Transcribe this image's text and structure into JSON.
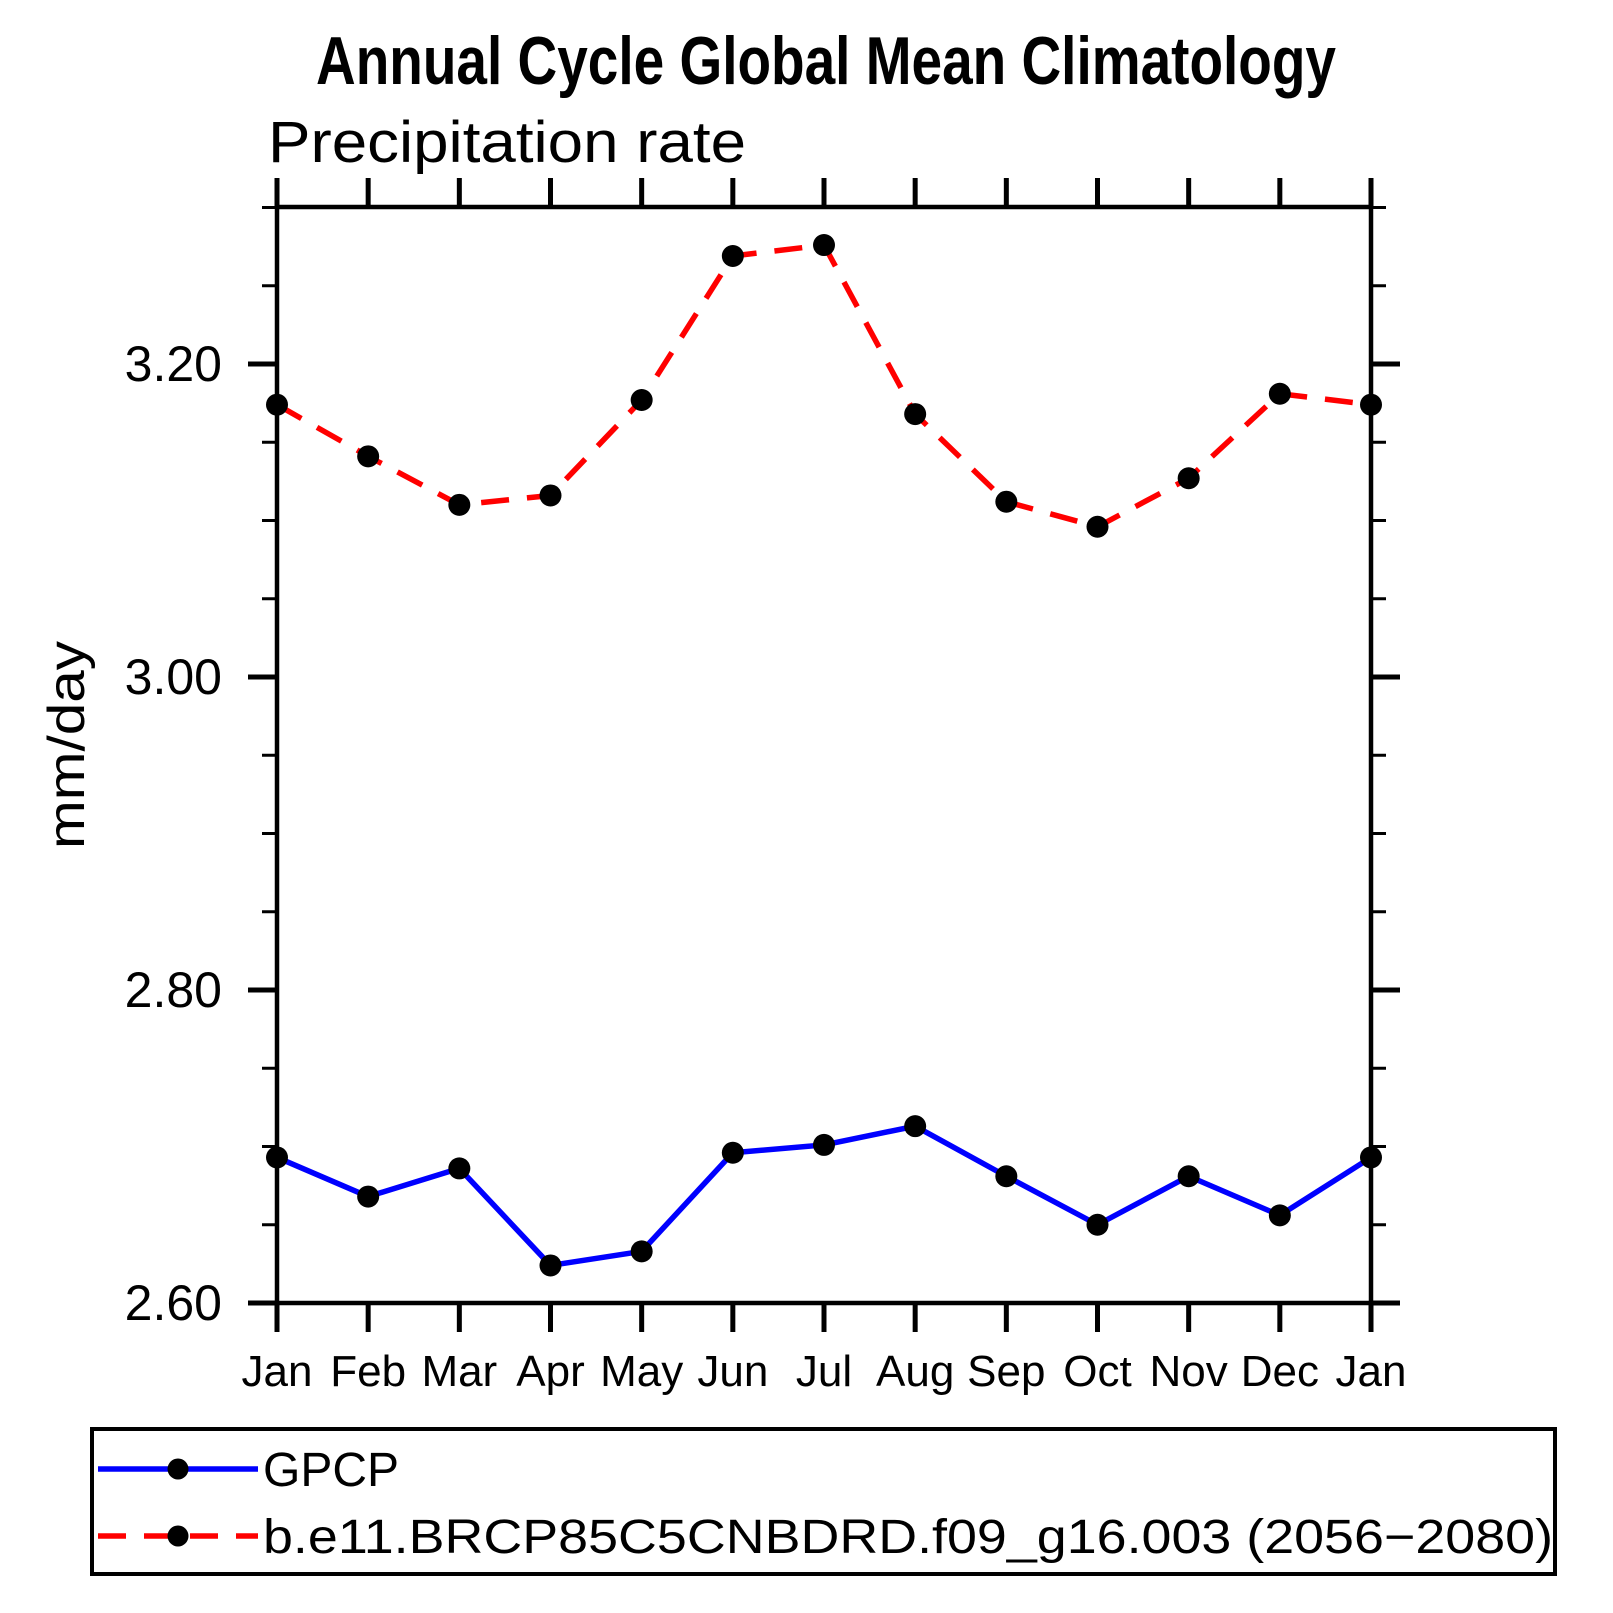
{
  "title": "Annual Cycle Global Mean Climatology",
  "subtitle": "Precipitation rate",
  "y_axis": {
    "label": "mm/day",
    "tick_labels": [
      "2.60",
      "2.80",
      "3.00",
      "3.20"
    ]
  },
  "x_axis": {
    "tick_labels": [
      "Jan",
      "Feb",
      "Mar",
      "Apr",
      "May",
      "Jun",
      "Jul",
      "Aug",
      "Sep",
      "Oct",
      "Nov",
      "Dec",
      "Jan"
    ]
  },
  "legend": {
    "entries": [
      "GPCP",
      "b.e11.BRCP85C5CNBDRD.f09_g16.003 (2056−2080)"
    ]
  },
  "chart_data": {
    "type": "line",
    "title": "Annual Cycle Global Mean Climatology",
    "subtitle": "Precipitation rate",
    "xlabel": "",
    "ylabel": "mm/day",
    "categories": [
      "Jan",
      "Feb",
      "Mar",
      "Apr",
      "May",
      "Jun",
      "Jul",
      "Aug",
      "Sep",
      "Oct",
      "Nov",
      "Dec",
      "Jan"
    ],
    "series": [
      {
        "name": "GPCP",
        "color": "#0000ff",
        "line_style": "solid",
        "marker": "filled-circle",
        "marker_color": "#000000",
        "values": [
          2.693,
          2.668,
          2.686,
          2.624,
          2.633,
          2.696,
          2.701,
          2.713,
          2.681,
          2.65,
          2.681,
          2.656,
          2.693
        ]
      },
      {
        "name": "b.e11.BRCP85C5CNBDRD.f09_g16.003 (2056−2080)",
        "color": "#ff0000",
        "line_style": "dashed",
        "marker": "filled-circle",
        "marker_color": "#000000",
        "values": [
          3.174,
          3.141,
          3.11,
          3.116,
          3.177,
          3.269,
          3.276,
          3.168,
          3.112,
          3.096,
          3.127,
          3.181,
          3.174
        ]
      }
    ],
    "ylim": [
      2.6,
      3.3
    ],
    "yticks_major": [
      2.6,
      2.8,
      3.0,
      3.2
    ],
    "ytick_minor_step": 0.05,
    "grid": false,
    "legend_position": "bottom-left-box",
    "frame_color": "#000000"
  }
}
